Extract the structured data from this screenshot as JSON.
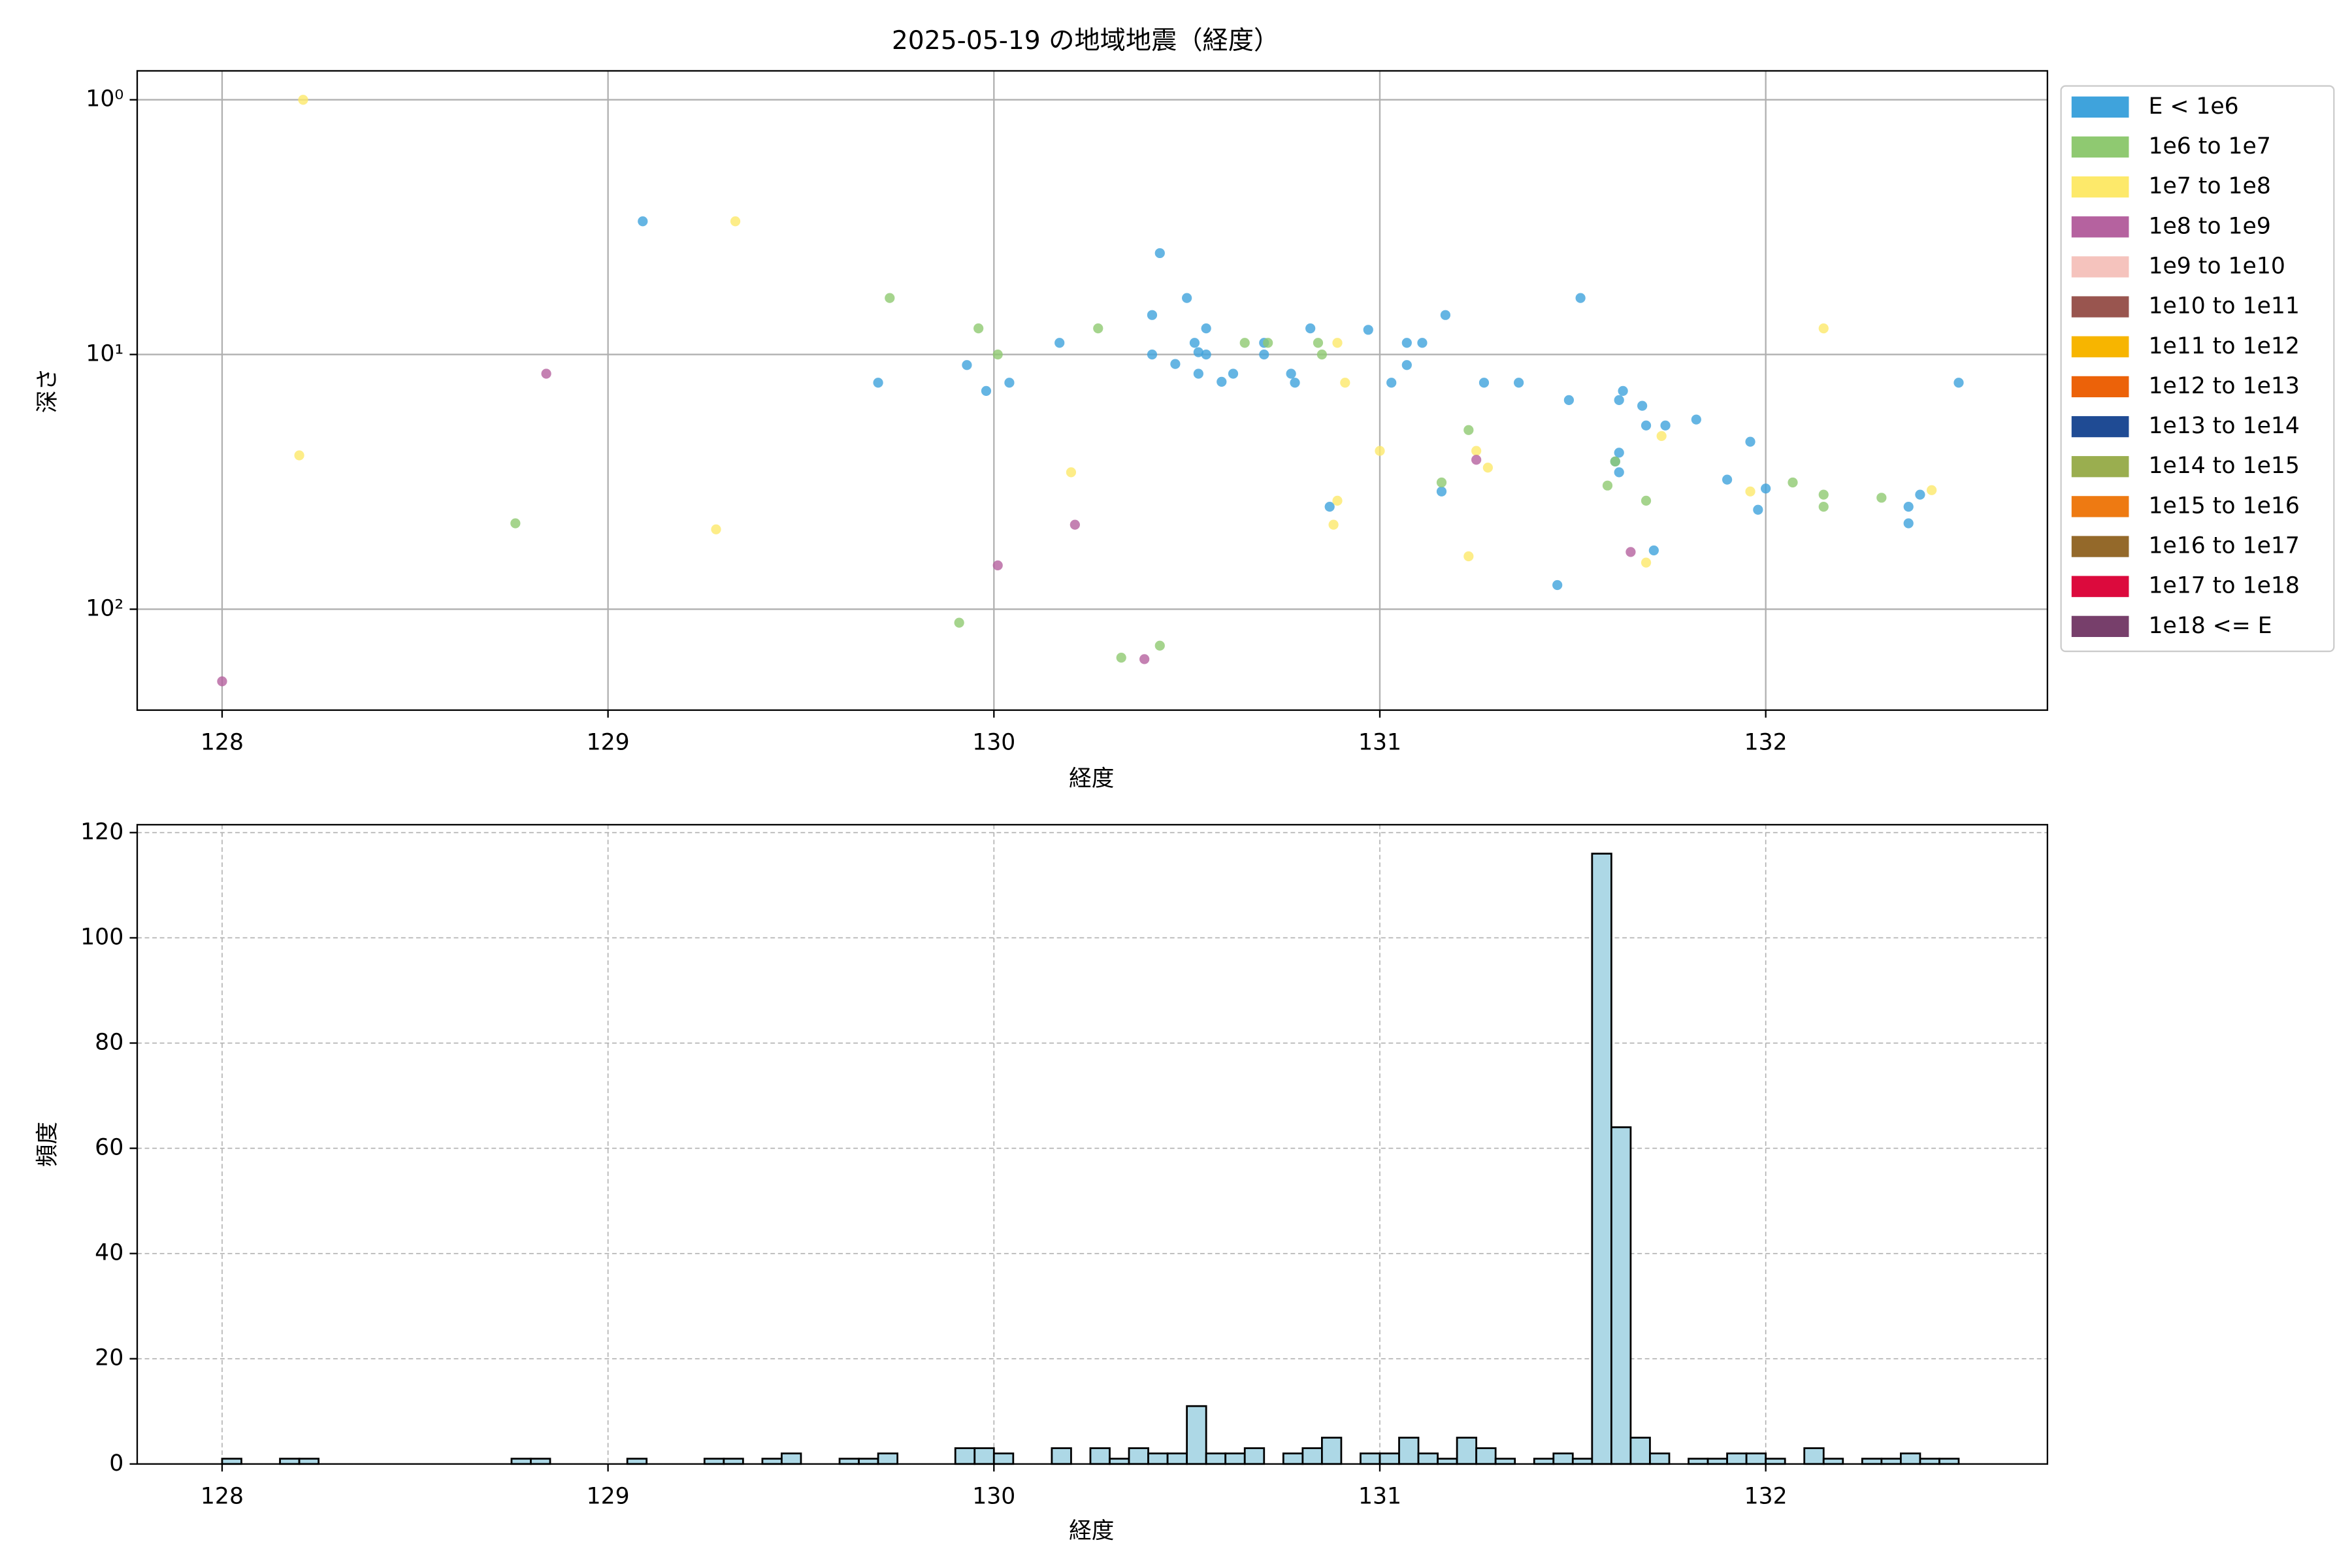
{
  "chart_data": [
    {
      "type": "scatter",
      "title": "2025-05-19 の地域地震（経度）",
      "x_label": "経度",
      "y_label": "深さ",
      "y_scale": "log",
      "y_inverted": true,
      "grid": true,
      "grid_style": "solid",
      "legend": "outside-right",
      "xlim": [
        127.78,
        132.73
      ],
      "xticks": [
        128,
        129,
        130,
        131,
        132
      ],
      "ylim": [
        0.77,
        249
      ],
      "yticks": [
        {
          "value": 1,
          "label": "10⁰"
        },
        {
          "value": 10,
          "label": "10¹"
        },
        {
          "value": 100,
          "label": "10²"
        }
      ],
      "series": [
        {
          "name": "E < 1e6",
          "color": "#3fa3dc",
          "x": [
            129.09,
            129.7,
            129.93,
            129.98,
            130.04,
            130.17,
            130.41,
            130.41,
            130.43,
            130.47,
            130.5,
            130.52,
            130.53,
            130.53,
            130.55,
            130.55,
            130.59,
            130.62,
            130.7,
            130.7,
            130.77,
            130.78,
            130.82,
            130.87,
            130.97,
            131.03,
            131.07,
            131.07,
            131.11,
            131.16,
            131.17,
            131.27,
            131.36,
            131.46,
            131.49,
            131.52,
            131.62,
            131.62,
            131.61,
            131.63,
            131.62,
            131.68,
            131.69,
            131.71,
            131.74,
            131.82,
            131.9,
            131.96,
            131.98,
            132.0,
            132.37,
            132.37,
            132.4,
            132.5
          ],
          "values": [
            3.0,
            12.9,
            11.0,
            13.9,
            12.9,
            9.0,
            10,
            7.0,
            4.0,
            10.9,
            6.0,
            9.0,
            9.8,
            11.9,
            7.9,
            10,
            12.8,
            11.9,
            9.0,
            10,
            11.9,
            12.9,
            7.9,
            39.6,
            8.0,
            12.9,
            9.0,
            11.0,
            9.0,
            34.5,
            7.0,
            12.9,
            12.9,
            80.4,
            15.1,
            6.0,
            29,
            24.3,
            26.3,
            13.9,
            15.1,
            15.9,
            19.0,
            58.8,
            19,
            18,
            31,
            22,
            40.7,
            33.6,
            39.6,
            46,
            35.5,
            12.9
          ]
        },
        {
          "name": "1e6 to 1e7",
          "color": "#8fc971",
          "x": [
            128.76,
            129.73,
            129.91,
            129.96,
            130.01,
            130.27,
            130.33,
            130.43,
            130.65,
            130.71,
            130.84,
            130.85,
            131.16,
            131.23,
            131.59,
            131.61,
            131.69,
            132.07,
            132.15,
            132.15,
            132.3
          ],
          "values": [
            46,
            6.0,
            113,
            7.9,
            10,
            7.9,
            155,
            139,
            9.0,
            9.0,
            9.0,
            10,
            31.8,
            19.8,
            32.7,
            26.3,
            37.5,
            31.8,
            35.5,
            39.6,
            36.5
          ]
        },
        {
          "name": "1e7 to 1e8",
          "color": "#fde96a",
          "x": [
            128.21,
            128.2,
            129.33,
            129.28,
            130.2,
            130.89,
            130.91,
            130.89,
            130.88,
            131.0,
            131.23,
            131.25,
            131.28,
            131.73,
            131.69,
            131.96,
            132.15,
            132.43
          ],
          "values": [
            1.0,
            24.9,
            3.0,
            48.6,
            29,
            9.0,
            12.9,
            37.5,
            46.6,
            23.9,
            62,
            23.9,
            27.8,
            20.9,
            65.6,
            34.5,
            7.9,
            34.1
          ]
        },
        {
          "name": "1e8 to 1e9",
          "color": "#b5629f",
          "x": [
            128.0,
            128.84,
            130.01,
            130.21,
            130.39,
            131.25,
            131.65
          ],
          "values": [
            192,
            11.9,
            67.3,
            46.6,
            157,
            25.9,
            59.6
          ]
        },
        {
          "name": "1e9 to 1e10",
          "color": "#f5c3bd",
          "x": [],
          "values": []
        },
        {
          "name": "1e10 to 1e11",
          "color": "#99554f",
          "x": [],
          "values": []
        },
        {
          "name": "1e11 to 1e12",
          "color": "#f7b500",
          "x": [],
          "values": []
        },
        {
          "name": "1e12 to 1e13",
          "color": "#ec6209",
          "x": [],
          "values": []
        },
        {
          "name": "1e13 to 1e14",
          "color": "#1f4b94",
          "x": [],
          "values": []
        },
        {
          "name": "1e14 to 1e15",
          "color": "#9aae4f",
          "x": [],
          "values": []
        },
        {
          "name": "1e15 to 1e16",
          "color": "#ee7a12",
          "x": [],
          "values": []
        },
        {
          "name": "1e16 to 1e17",
          "color": "#94692a",
          "x": [],
          "values": []
        },
        {
          "name": "1e17 to 1e18",
          "color": "#dc0a3d",
          "x": [],
          "values": []
        },
        {
          "name": "1e18 <= E",
          "color": "#773f6b",
          "x": [],
          "values": []
        }
      ]
    },
    {
      "type": "histogram",
      "x_label": "経度",
      "y_label": "頻度",
      "color": "#add8e6",
      "edge_color": "#000000",
      "grid": true,
      "grid_style": "dashed",
      "xlim": [
        127.78,
        132.73
      ],
      "xticks": [
        128,
        129,
        130,
        131,
        132
      ],
      "ylim": [
        0,
        121.5
      ],
      "yticks": [
        0,
        20,
        40,
        60,
        80,
        100,
        120
      ],
      "bins": [
        128.0,
        128.05,
        128.1,
        128.15,
        128.2,
        128.25,
        128.3,
        128.35,
        128.4,
        128.45,
        128.5,
        128.55,
        128.6,
        128.65,
        128.7,
        128.75,
        128.8,
        128.85,
        128.9,
        128.95,
        129.0,
        129.05,
        129.1,
        129.15,
        129.2,
        129.25,
        129.3,
        129.35,
        129.4,
        129.45,
        129.5,
        129.55,
        129.6,
        129.65,
        129.7,
        129.75,
        129.8,
        129.85,
        129.9,
        129.95,
        130.0,
        130.05,
        130.1,
        130.15,
        130.2,
        130.25,
        130.3,
        130.35,
        130.4,
        130.45,
        130.5,
        130.55,
        130.6,
        130.65,
        130.7,
        130.75,
        130.8,
        130.85,
        130.9,
        130.95,
        131.0,
        131.05,
        131.1,
        131.15,
        131.2,
        131.25,
        131.3,
        131.35,
        131.4,
        131.45,
        131.5,
        131.55,
        131.6,
        131.65,
        131.7,
        131.75,
        131.8,
        131.85,
        131.9,
        131.95,
        132.0,
        132.05,
        132.1,
        132.15,
        132.2,
        132.25,
        132.3,
        132.35,
        132.4,
        132.45,
        132.5
      ],
      "counts": [
        1,
        0,
        0,
        1,
        1,
        0,
        0,
        0,
        0,
        0,
        0,
        0,
        0,
        0,
        0,
        1,
        1,
        0,
        0,
        0,
        0,
        1,
        0,
        0,
        0,
        1,
        1,
        0,
        1,
        2,
        0,
        0,
        1,
        1,
        2,
        0,
        0,
        0,
        3,
        3,
        2,
        0,
        0,
        3,
        0,
        3,
        1,
        3,
        2,
        2,
        11,
        2,
        2,
        3,
        0,
        2,
        3,
        5,
        0,
        2,
        2,
        5,
        2,
        1,
        5,
        3,
        1,
        0,
        1,
        2,
        1,
        116,
        64,
        5,
        2,
        0,
        1,
        1,
        2,
        2,
        1,
        0,
        3,
        1,
        0,
        1,
        1,
        2,
        1,
        1
      ]
    }
  ]
}
